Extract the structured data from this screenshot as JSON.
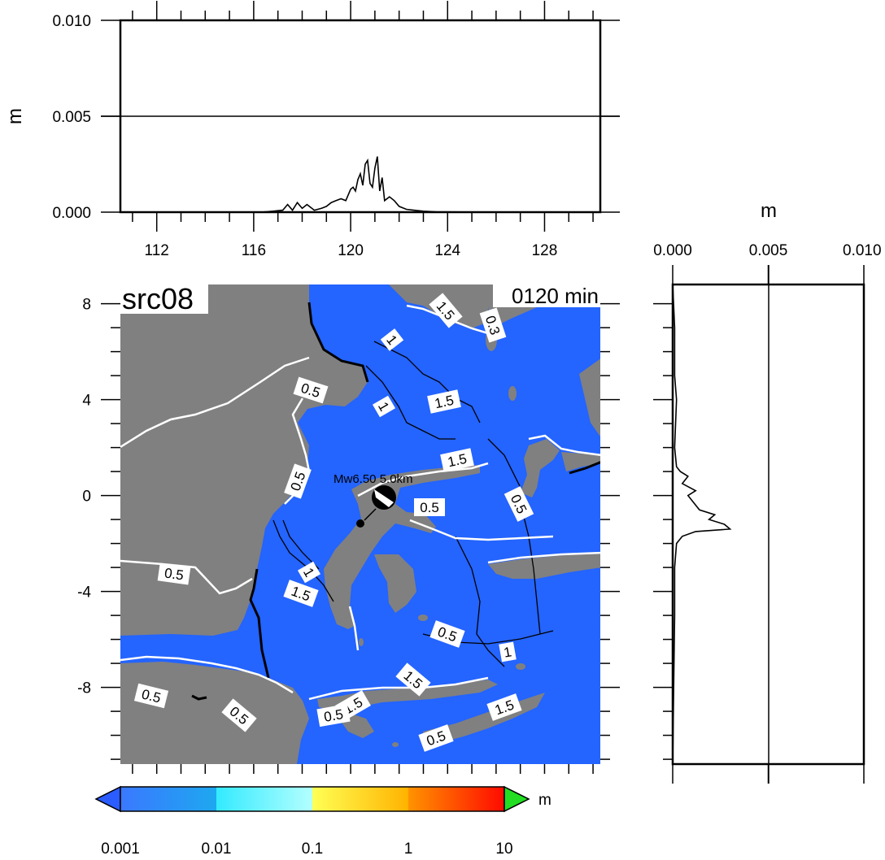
{
  "chart_data": [
    {
      "type": "line",
      "panel": "top-profile",
      "ylabel": "m",
      "ylim": [
        0,
        0.01
      ],
      "yticks": [
        "0.000",
        "0.005",
        "0.010"
      ],
      "xlim": [
        110.5,
        130.3
      ],
      "xticks": [
        "112",
        "116",
        "120",
        "124",
        "128"
      ],
      "grid_lines_y": [
        0.005
      ],
      "series": [
        {
          "x": [
            110.5,
            116.3,
            116.8,
            117.2,
            117.4,
            117.6,
            117.8,
            118.0,
            118.2,
            118.5,
            118.8,
            119.0,
            119.2,
            119.4,
            119.6,
            119.8,
            120.0,
            120.1,
            120.2,
            120.3,
            120.4,
            120.5,
            120.6,
            120.7,
            120.8,
            120.9,
            121.0,
            121.1,
            121.2,
            121.3,
            121.4,
            121.6,
            121.8,
            122.0,
            122.3,
            122.6,
            123.0,
            123.5,
            124.5,
            125.5,
            130.3
          ],
          "y": [
            0.0,
            0.0,
            5e-05,
            0.0001,
            0.0004,
            0.0001,
            0.0005,
            0.0002,
            0.0004,
            0.0001,
            0.0002,
            0.0003,
            0.0005,
            0.0006,
            0.0007,
            0.0006,
            0.0012,
            0.0013,
            0.0011,
            0.0017,
            0.002,
            0.0014,
            0.0025,
            0.0027,
            0.0015,
            0.0013,
            0.0023,
            0.0029,
            0.0011,
            0.0018,
            0.0006,
            0.0008,
            0.0006,
            0.0003,
            0.00015,
            0.0001,
            5e-05,
            2e-05,
            1e-05,
            0.0,
            0.0
          ]
        }
      ]
    },
    {
      "type": "heatmap",
      "panel": "map",
      "title": "src08",
      "time_label": "0120 min",
      "xlim": [
        110.5,
        130.3
      ],
      "ylim": [
        -11.2,
        8.8
      ],
      "yticks": [
        "8",
        "4",
        "0",
        "-4",
        "-8"
      ],
      "ocean_color": "#2464ff",
      "land_color": "#808080",
      "contour_labels": [
        "1.5",
        "0.3",
        "1",
        "0.5",
        "1",
        "1.5",
        "1.5",
        "0.5",
        "0.5",
        "0.5",
        "0.5",
        "1",
        "1.5",
        "0.5",
        "1",
        "1.5",
        "0.5",
        "0.5",
        "1.5",
        "0.5",
        "0.5",
        "1.5"
      ],
      "epicenter_label": "Mw6.50 5.0km",
      "epicenter": {
        "lon": 121.4,
        "lat": -0.4
      }
    },
    {
      "type": "line",
      "panel": "side-profile",
      "xlabel": "m",
      "xlim": [
        0,
        0.01
      ],
      "xticks": [
        "0.000",
        "0.005",
        "0.010"
      ],
      "ylim": [
        -11.2,
        8.8
      ],
      "grid_lines_x": [
        0.005
      ],
      "series": [
        {
          "y": [
            8.8,
            7.0,
            5.0,
            4.0,
            2.0,
            1.2,
            1.0,
            0.8,
            0.5,
            0.2,
            0.0,
            -0.3,
            -0.6,
            -0.8,
            -1.0,
            -1.2,
            -1.4,
            -1.5,
            -1.7,
            -2.0,
            -3.0,
            -5.0,
            -8.0,
            -11.2
          ],
          "x": [
            0.0,
            0.0001,
            0.0001,
            0.0002,
            0.0001,
            0.0002,
            0.0004,
            0.0008,
            0.0005,
            0.0012,
            0.0008,
            0.0011,
            0.0014,
            0.0022,
            0.0019,
            0.0027,
            0.003,
            0.0012,
            0.0005,
            0.0002,
            0.0001,
            0.0001,
            5e-05,
            0.0
          ]
        }
      ]
    },
    {
      "type": "colorbar",
      "panel": "colorbar",
      "unit": "m",
      "ticks": [
        "0.001",
        "0.01",
        "0.1",
        "1",
        "10"
      ],
      "segments": [
        {
          "from": "#3a78ff",
          "to": "#1ea8f0"
        },
        {
          "from": "#33eaff",
          "to": "#b3ffff"
        },
        {
          "from": "#ffff55",
          "to": "#ffb300"
        },
        {
          "from": "#ff9300",
          "to": "#ff0a00"
        }
      ],
      "low_arrow_color": "#2a5cff",
      "high_arrow_color": "#22dd22"
    }
  ]
}
